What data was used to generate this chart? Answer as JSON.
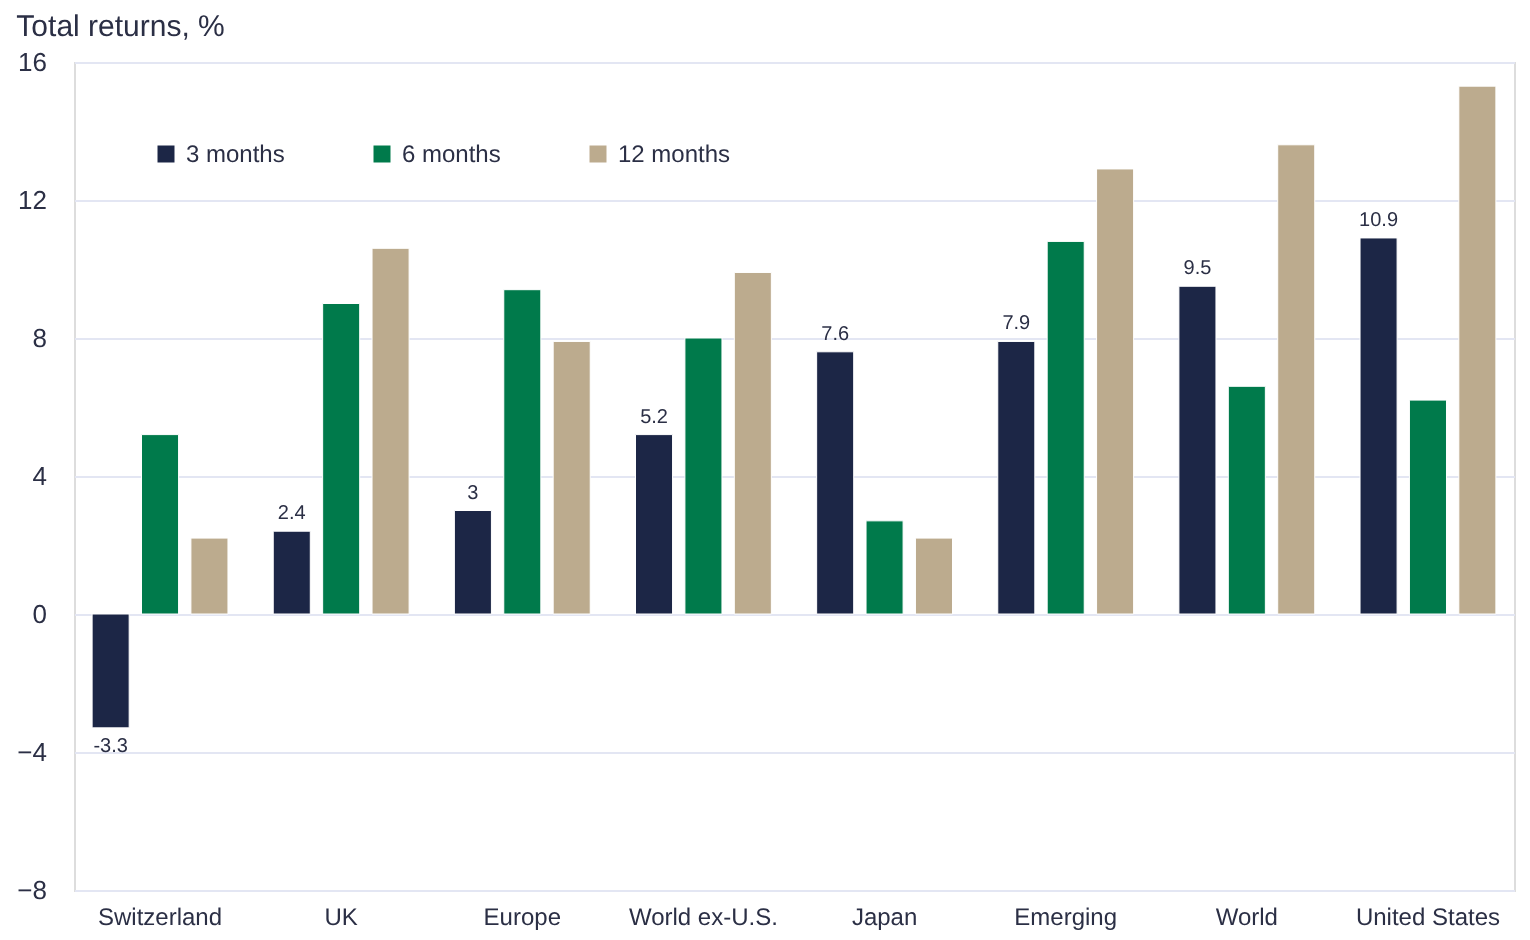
{
  "chart_data": {
    "type": "bar",
    "title": "Total returns, %",
    "categories": [
      "Switzerland",
      "UK",
      "Europe",
      "World ex-U.S.",
      "Japan",
      "Emerging",
      "World",
      "United States"
    ],
    "series": [
      {
        "name": "3 months",
        "color": "#1c2646",
        "values": [
          -3.3,
          2.4,
          3,
          5.2,
          7.6,
          7.9,
          9.5,
          10.9
        ],
        "value_labels": [
          "-3.3",
          "2.4",
          "3",
          "5.2",
          "7.6",
          "7.9",
          "9.5",
          "10.9"
        ]
      },
      {
        "name": "6 months",
        "color": "#007a4b",
        "values": [
          5.2,
          9.0,
          9.4,
          8.0,
          2.7,
          10.8,
          6.6,
          6.2
        ]
      },
      {
        "name": "12 months",
        "color": "#bcab8e",
        "values": [
          2.2,
          10.6,
          7.9,
          9.9,
          2.2,
          12.9,
          13.6,
          15.3
        ]
      }
    ],
    "ylim": [
      -8,
      16
    ],
    "yticks": [
      -8,
      -4,
      0,
      4,
      8,
      12,
      16
    ],
    "grid": "y",
    "legend": "top left"
  }
}
